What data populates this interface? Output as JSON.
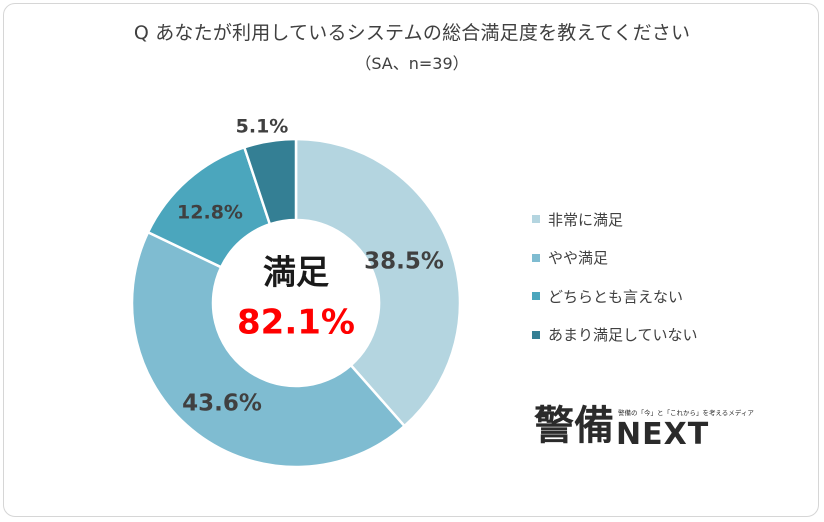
{
  "header": {
    "title": "Q あなたが利用しているシステムの総合満足度を教えてください",
    "subtitle": "（SA、n=39）"
  },
  "center": {
    "label": "満足",
    "value": "82.1%"
  },
  "colors": {
    "series": [
      "#b4d5e0",
      "#7fbcd1",
      "#4ba6bd",
      "#347f94"
    ],
    "highlight": "#ff0000",
    "text": "#404040"
  },
  "legend": {
    "items": [
      {
        "label": "非常に満足"
      },
      {
        "label": "やや満足"
      },
      {
        "label": "どちらとも言えない"
      },
      {
        "label": "あまり満足していない"
      }
    ]
  },
  "logo": {
    "main": "警備",
    "next": "NEXT",
    "tagline": "警備の「今」と「これから」を考えるメディア"
  },
  "chart_data": {
    "type": "pie",
    "title": "Q あなたが利用しているシステムの総合満足度を教えてください",
    "subtitle": "（SA、n=39）",
    "categories": [
      "非常に満足",
      "やや満足",
      "どちらとも言えない",
      "あまり満足していない"
    ],
    "values": [
      38.5,
      43.6,
      12.8,
      5.1
    ],
    "data_labels": [
      "38.5%",
      "43.6%",
      "12.8%",
      "5.1%"
    ],
    "donut": true,
    "legend_position": "right"
  }
}
